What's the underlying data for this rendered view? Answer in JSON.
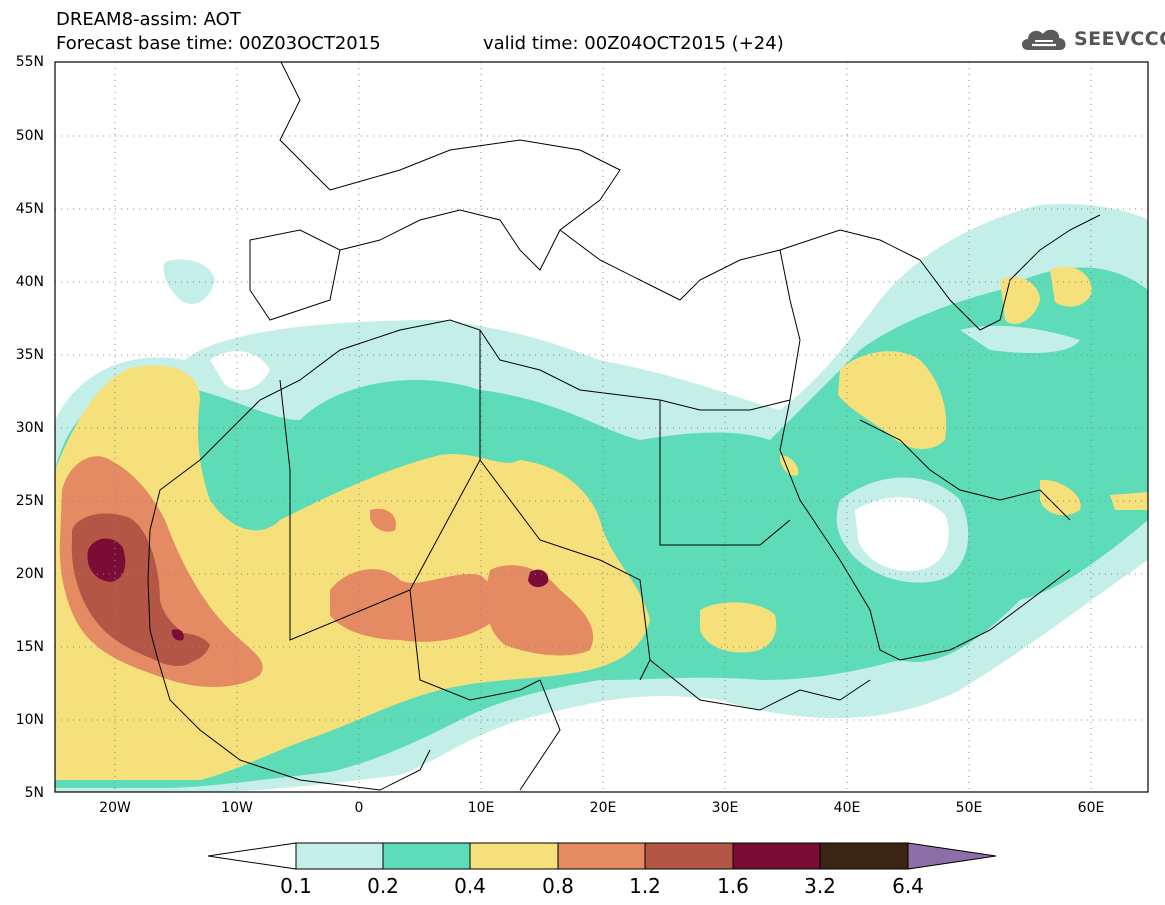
{
  "header": {
    "title_line1": "DREAM8-assim: AOT",
    "title_line2": "Forecast base time: 00Z03OCT2015",
    "valid_time": "valid time: 00Z04OCT2015 (+24)",
    "logo_text": "SEEVCCC",
    "logo_icon": "cloud-icon"
  },
  "map": {
    "lon_range": [
      -25,
      65
    ],
    "lat_range": [
      5,
      55
    ],
    "grid": "dotted",
    "lat_labels": [
      "55N",
      "50N",
      "45N",
      "40N",
      "35N",
      "30N",
      "25N",
      "20N",
      "15N",
      "10N",
      "5N"
    ],
    "lon_labels": [
      "20W",
      "10W",
      "0",
      "10E",
      "20E",
      "30E",
      "40E",
      "50E",
      "60E"
    ]
  },
  "colorbar": {
    "labels": [
      "0.1",
      "0.2",
      "0.4",
      "0.8",
      "1.2",
      "1.6",
      "3.2",
      "6.4"
    ],
    "colors": [
      "#ffffff",
      "#c4efe9",
      "#5ddcb7",
      "#f5e07b",
      "#e58b63",
      "#b35645",
      "#7a0c36",
      "#3a2414",
      "#8e6ea6"
    ]
  }
}
